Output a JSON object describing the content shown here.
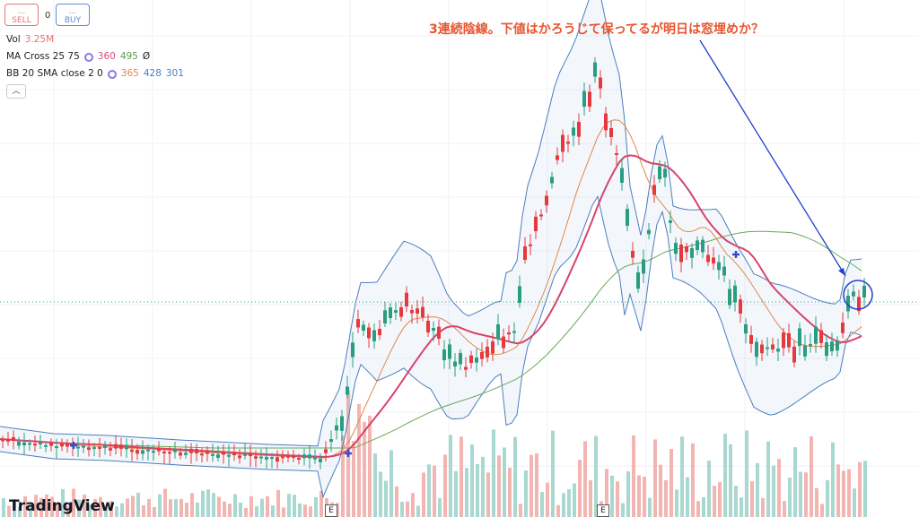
{
  "toolbar": {
    "sell": {
      "dots": "...",
      "label": "SELL"
    },
    "quantity": "0",
    "buy": {
      "dots": "...",
      "label": "BUY"
    }
  },
  "indicators": [
    {
      "name": "Vol",
      "values": [
        "3.25M"
      ]
    },
    {
      "name": "MA Cross 25 75",
      "values": [
        "360",
        "495",
        "Ø"
      ]
    },
    {
      "name": "BB 20 SMA close 2 0",
      "values": [
        "365",
        "428",
        "301"
      ]
    }
  ],
  "annotation": "3連続陰線。下値はかろうじて保ってるが明日は窓埋めか？",
  "earnings_markers": [
    "E",
    "E"
  ],
  "logo": "TradingView"
}
